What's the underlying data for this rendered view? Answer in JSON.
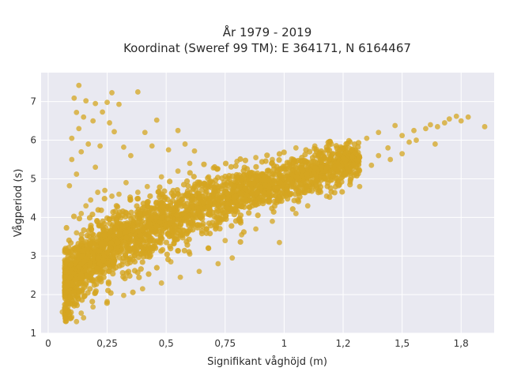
{
  "chart_data": {
    "type": "scatter",
    "title_line1": "År 1979 - 2019",
    "title_line2": "Koordinat (Sweref 99 TM): E 364171, N 6164467",
    "xlabel": "Signifikant våghöjd (m)",
    "ylabel": "Vågperiod (s)",
    "xlim": [
      -0.03,
      1.89
    ],
    "ylim": [
      1.0,
      7.75
    ],
    "x_ticks": [
      0,
      0.25,
      0.5,
      0.75,
      1,
      1.25,
      1.5,
      1.75
    ],
    "x_tick_labels": [
      "0",
      "0,25",
      "0,5",
      "0,75",
      "1",
      "1,2",
      "1,5",
      "1,8"
    ],
    "y_ticks": [
      1,
      2,
      3,
      4,
      5,
      6,
      7
    ],
    "y_tick_labels": [
      "1",
      "2",
      "3",
      "4",
      "5",
      "6",
      "7"
    ],
    "grid": true,
    "colors": {
      "marker": "#d4a520",
      "plot_background": "#e9e9f1",
      "grid": "#ffffff"
    },
    "points": [
      [
        0.13,
        7.42
      ],
      [
        0.27,
        7.23
      ],
      [
        0.38,
        7.25
      ],
      [
        0.11,
        7.09
      ],
      [
        0.16,
        7.02
      ],
      [
        0.2,
        6.95
      ],
      [
        0.25,
        6.98
      ],
      [
        0.3,
        6.93
      ],
      [
        0.12,
        6.72
      ],
      [
        0.15,
        6.6
      ],
      [
        0.23,
        6.73
      ],
      [
        0.19,
        6.5
      ],
      [
        0.26,
        6.45
      ],
      [
        0.13,
        6.3
      ],
      [
        0.28,
        6.22
      ],
      [
        0.1,
        6.05
      ],
      [
        0.17,
        5.9
      ],
      [
        0.22,
        5.85
      ],
      [
        0.32,
        5.82
      ],
      [
        0.14,
        5.7
      ],
      [
        0.41,
        6.2
      ],
      [
        0.46,
        6.52
      ],
      [
        0.55,
        6.25
      ],
      [
        0.58,
        5.9
      ],
      [
        0.51,
        5.75
      ],
      [
        0.44,
        5.85
      ],
      [
        0.62,
        5.72
      ],
      [
        0.35,
        5.6
      ],
      [
        0.1,
        5.5
      ],
      [
        0.09,
        4.82
      ],
      [
        0.12,
        5.12
      ],
      [
        0.2,
        5.3
      ],
      [
        0.42,
        4.8
      ],
      [
        0.38,
        4.65
      ],
      [
        0.33,
        4.9
      ],
      [
        0.48,
        5.05
      ],
      [
        0.55,
        5.2
      ],
      [
        0.6,
        5.4
      ],
      [
        0.7,
        5.28
      ],
      [
        0.8,
        5.45
      ],
      [
        0.88,
        5.55
      ],
      [
        0.95,
        5.5
      ],
      [
        1.05,
        5.8
      ],
      [
        1.13,
        5.85
      ],
      [
        1.2,
        5.9
      ],
      [
        1.28,
        5.95
      ],
      [
        1.35,
        6.05
      ],
      [
        1.4,
        6.2
      ],
      [
        1.47,
        6.38
      ],
      [
        1.5,
        6.12
      ],
      [
        1.56,
        6.0
      ],
      [
        1.6,
        6.3
      ],
      [
        1.65,
        6.35
      ],
      [
        1.7,
        6.55
      ],
      [
        1.75,
        6.5
      ],
      [
        1.73,
        6.62
      ],
      [
        1.78,
        6.6
      ],
      [
        1.85,
        6.35
      ],
      [
        1.68,
        6.45
      ],
      [
        1.62,
        6.4
      ],
      [
        1.55,
        6.25
      ],
      [
        1.53,
        5.95
      ],
      [
        1.64,
        5.9
      ],
      [
        1.44,
        5.8
      ],
      [
        1.4,
        5.6
      ],
      [
        1.3,
        5.55
      ],
      [
        1.25,
        5.4
      ],
      [
        1.15,
        5.25
      ],
      [
        1.06,
        5.1
      ],
      [
        1.0,
        4.98
      ],
      [
        1.18,
        4.55
      ],
      [
        1.1,
        4.3
      ],
      [
        1.05,
        4.1
      ],
      [
        0.95,
        3.9
      ],
      [
        0.88,
        3.7
      ],
      [
        0.82,
        3.55
      ],
      [
        0.75,
        3.4
      ],
      [
        0.68,
        3.2
      ],
      [
        0.6,
        3.05
      ],
      [
        0.52,
        2.85
      ],
      [
        1.32,
        4.8
      ],
      [
        1.28,
        4.92
      ],
      [
        0.98,
        3.35
      ],
      [
        0.78,
        2.95
      ],
      [
        0.72,
        2.8
      ],
      [
        0.64,
        2.6
      ],
      [
        0.56,
        2.45
      ],
      [
        0.48,
        2.3
      ],
      [
        0.4,
        2.15
      ],
      [
        0.32,
        1.98
      ],
      [
        0.25,
        1.82
      ],
      [
        0.19,
        1.68
      ],
      [
        0.14,
        1.52
      ],
      [
        0.1,
        1.42
      ],
      [
        0.07,
        1.48
      ],
      [
        0.06,
        1.55
      ],
      [
        0.08,
        1.62
      ],
      [
        0.12,
        1.3
      ],
      [
        0.15,
        1.4
      ],
      [
        0.09,
        2.3
      ],
      [
        0.1,
        2.6
      ],
      [
        0.11,
        3.2
      ],
      [
        0.12,
        3.6
      ],
      [
        0.14,
        4.1
      ],
      [
        0.16,
        4.3
      ],
      [
        0.18,
        4.45
      ],
      [
        0.21,
        4.65
      ],
      [
        0.24,
        4.7
      ],
      [
        0.27,
        4.55
      ],
      [
        0.3,
        4.6
      ],
      [
        0.86,
        4.8
      ],
      [
        0.9,
        5.0
      ],
      [
        0.93,
        4.6
      ],
      [
        0.76,
        4.9
      ],
      [
        0.68,
        5.05
      ],
      [
        0.64,
        4.85
      ],
      [
        1.22,
        5.1
      ],
      [
        1.37,
        5.35
      ],
      [
        1.45,
        5.5
      ],
      [
        1.5,
        5.65
      ]
    ]
  }
}
